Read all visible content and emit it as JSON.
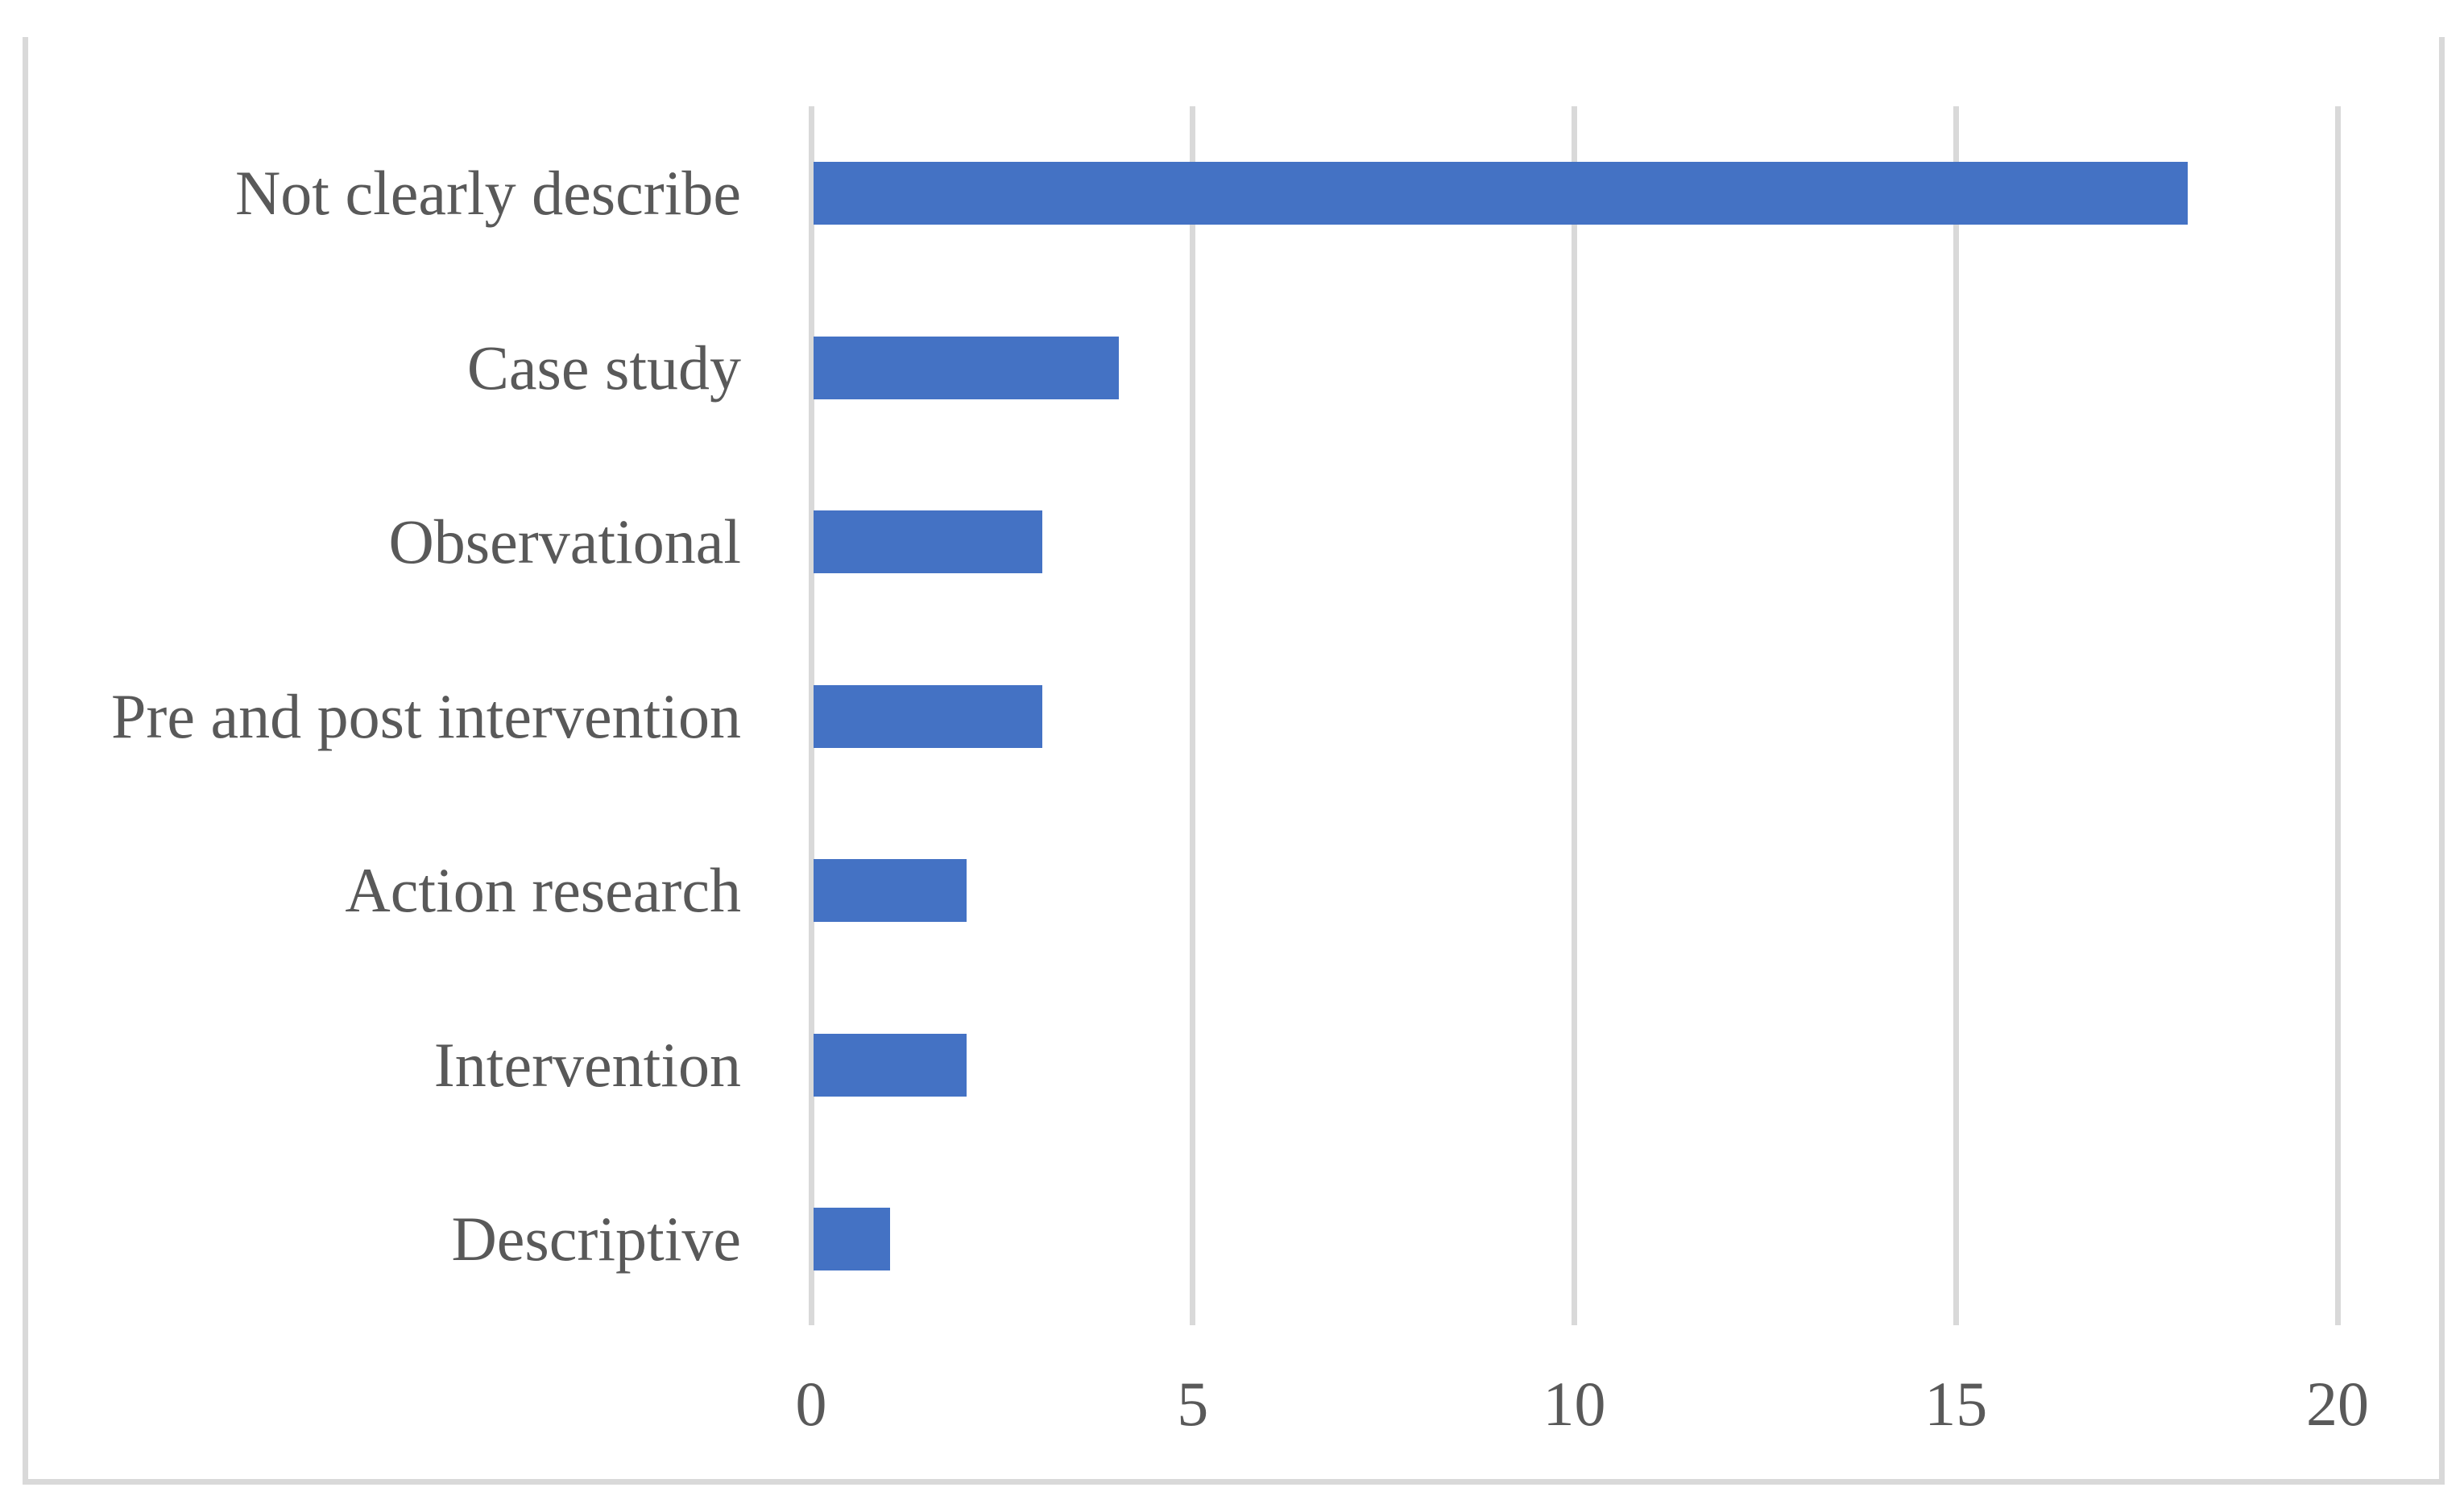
{
  "chart_data": {
    "type": "bar",
    "orientation": "horizontal",
    "title": "",
    "xlabel": "",
    "ylabel": "",
    "categories": [
      "Not clearly describe",
      "Case study",
      "Observational",
      "Pre and post intervention",
      "Action research",
      "Intervention",
      "Descriptive"
    ],
    "values": [
      18,
      4,
      3,
      3,
      2,
      2,
      1
    ],
    "x_ticks": [
      "0",
      "5",
      "10",
      "15",
      "20"
    ],
    "x_tick_values": [
      0,
      5,
      10,
      15,
      20
    ],
    "xlim": [
      0,
      20
    ],
    "grid": "vertical-gridlines-on",
    "legend": "none",
    "colors": {
      "bar": "#4472C4",
      "gridline": "#D9D9D9",
      "frame": "#D9D9D9",
      "text": "#595959",
      "background": "#FFFFFF"
    }
  }
}
